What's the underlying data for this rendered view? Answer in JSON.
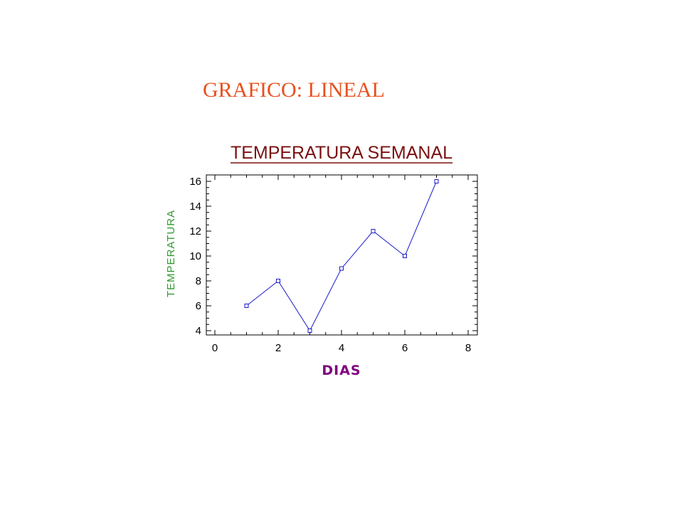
{
  "slide": {
    "title": "GRAFICO: LINEAL"
  },
  "colors": {
    "slide_title": "#e8501e",
    "chart_title": "#7a1010",
    "series_line": "#1a1acc",
    "ylabel": "#2e9a2e",
    "xlabel": "#800080"
  },
  "chart_data": {
    "type": "line",
    "title": "TEMPERATURA SEMANAL",
    "xlabel": "DIAS",
    "ylabel": "TEMPERATURA",
    "xlim": [
      0,
      8
    ],
    "ylim": [
      4,
      16
    ],
    "xticks": [
      0,
      2,
      4,
      6,
      8
    ],
    "yticks": [
      4,
      6,
      8,
      10,
      12,
      14,
      16
    ],
    "grid": false,
    "marker": "square",
    "series": [
      {
        "x": [
          1,
          2,
          3,
          4,
          5,
          6,
          7
        ],
        "y": [
          6,
          8,
          4,
          9,
          12,
          10,
          16
        ]
      }
    ]
  }
}
